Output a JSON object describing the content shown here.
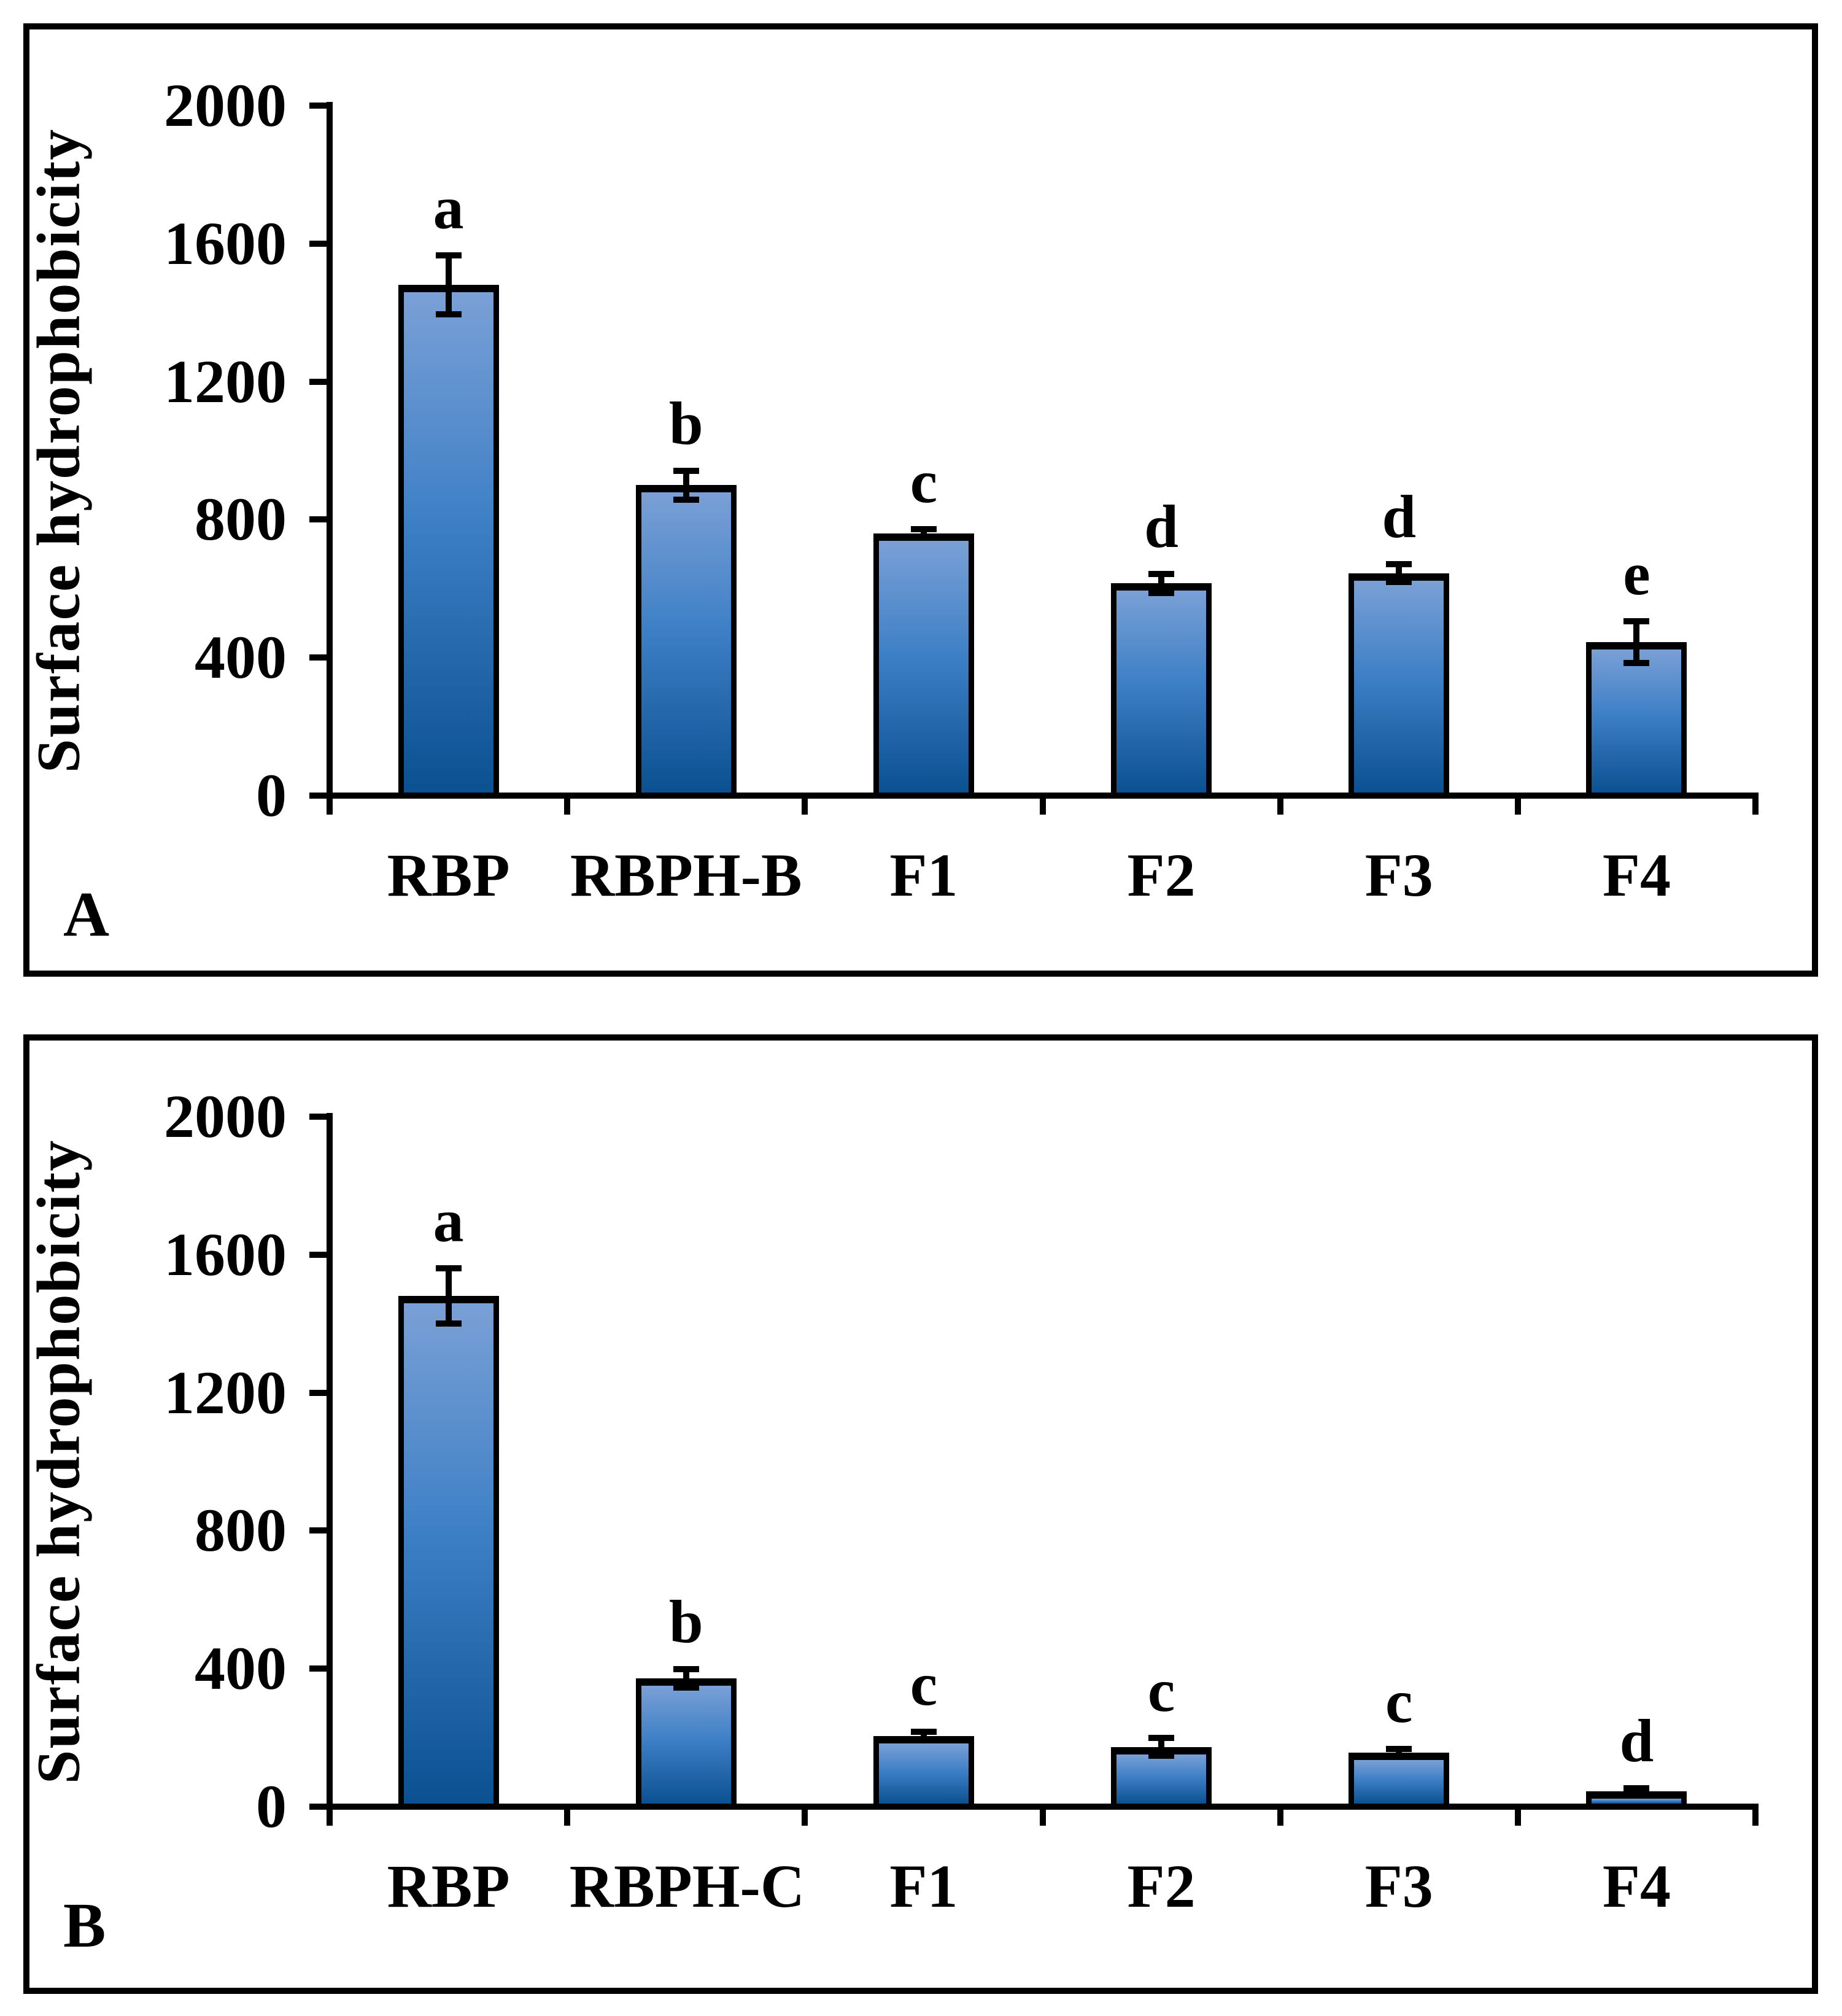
{
  "figure": {
    "background": "#ffffff",
    "panel_border_color": "#000000",
    "axis_color": "#000000",
    "text_color": "#000000",
    "bar_fill_top": "#7aa0d6",
    "bar_fill_mid": "#3e80c6",
    "bar_fill_bottom": "#0b5191",
    "bar_outline": "#000000",
    "error_bar_color": "#000000"
  },
  "chart_data": [
    {
      "type": "bar",
      "panel_label": "A",
      "ylabel": "Surface hydrophobicity",
      "xlabel": "",
      "ylim": [
        0,
        2000
      ],
      "yticks": [
        0,
        400,
        800,
        1200,
        1600,
        2000
      ],
      "grid": false,
      "legend": null,
      "categories": [
        "RBP",
        "RBPH-B",
        "F1",
        "F2",
        "F3",
        "F4"
      ],
      "values": [
        1480,
        900,
        760,
        615,
        645,
        445
      ],
      "errors": [
        85,
        42,
        12,
        28,
        25,
        60
      ],
      "sig_letters": [
        "a",
        "b",
        "c",
        "d",
        "d",
        "e"
      ]
    },
    {
      "type": "bar",
      "panel_label": "B",
      "ylabel": "Surface hydrophobicity",
      "xlabel": "",
      "ylim": [
        0,
        2000
      ],
      "yticks": [
        0,
        400,
        800,
        1200,
        1600,
        2000
      ],
      "grid": false,
      "legend": null,
      "categories": [
        "RBP",
        "RBPH-C",
        "F1",
        "F2",
        "F3",
        "F4"
      ],
      "values": [
        1480,
        372,
        205,
        173,
        156,
        45
      ],
      "errors": [
        80,
        27,
        12,
        26,
        12,
        8
      ],
      "sig_letters": [
        "a",
        "b",
        "c",
        "c",
        "c",
        "d"
      ]
    }
  ]
}
